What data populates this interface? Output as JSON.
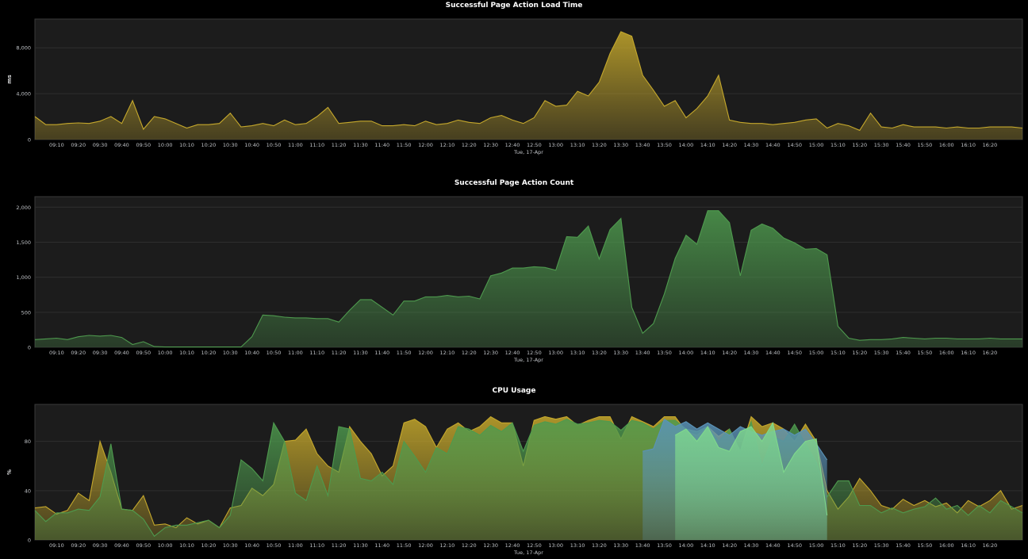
{
  "colors": {
    "background": "#000000",
    "plot_bg": "#1c1c1c",
    "grid": "#2e2e2e",
    "frame": "#3a3a3a"
  },
  "chart_data": [
    {
      "type": "area",
      "title": "Successful Page Action Load Time",
      "ylabel": "ms",
      "xlabel": "Tue, 17-Apr",
      "ylim": [
        0,
        10500
      ],
      "yticks": [
        0,
        4000,
        8000
      ],
      "ytick_labels": [
        "0",
        "4,000",
        "8,000"
      ],
      "x_start": "09:00",
      "x_step_minutes": 5,
      "x_ticks": [
        "09:10",
        "09:20",
        "09:30",
        "09:40",
        "09:50",
        "10:00",
        "10:10",
        "10:20",
        "10:30",
        "10:40",
        "10:50",
        "11:00",
        "11:10",
        "11:20",
        "11:30",
        "11:40",
        "11:50",
        "12:00",
        "12:10",
        "12:20",
        "12:30",
        "12:40",
        "12:50",
        "13:00",
        "13:10",
        "13:20",
        "13:30",
        "13:40",
        "13:50",
        "14:00",
        "14:10",
        "14:20",
        "14:30",
        "14:40",
        "14:50",
        "15:00",
        "15:10",
        "15:20",
        "15:30",
        "15:40",
        "15:50",
        "16:00",
        "16:10",
        "16:20"
      ],
      "series": [
        {
          "color": "#c5a82c",
          "values": [
            2000,
            1300,
            1300,
            1400,
            1450,
            1400,
            1600,
            2000,
            1400,
            3400,
            900,
            2000,
            1800,
            1400,
            1000,
            1300,
            1300,
            1400,
            2300,
            1100,
            1200,
            1400,
            1200,
            1700,
            1300,
            1400,
            2000,
            2800,
            1400,
            1500,
            1600,
            1600,
            1200,
            1200,
            1300,
            1200,
            1600,
            1300,
            1400,
            1700,
            1500,
            1400,
            1900,
            2100,
            1700,
            1400,
            1900,
            3400,
            2900,
            3000,
            4200,
            3800,
            5000,
            7500,
            9400,
            9000,
            5600,
            4300,
            2900,
            3400,
            1900,
            2700,
            3800,
            5600,
            1700,
            1500,
            1400,
            1400,
            1300,
            1400,
            1500,
            1700,
            1800,
            1000,
            1400,
            1200,
            800,
            2300,
            1100,
            1000,
            1300,
            1100,
            1100,
            1100,
            1000,
            1100,
            1000,
            1000,
            1100,
            1100,
            1100,
            1000
          ]
        }
      ]
    },
    {
      "type": "area",
      "title": "Successful Page Action Count",
      "ylabel": "",
      "xlabel": "Tue, 17-Apr",
      "ylim": [
        0,
        2150
      ],
      "yticks": [
        0,
        500,
        1000,
        1500,
        2000
      ],
      "ytick_labels": [
        "0",
        "500",
        "1,000",
        "1,500",
        "2,000"
      ],
      "x_start": "09:00",
      "x_step_minutes": 5,
      "x_ticks": [
        "09:10",
        "09:20",
        "09:30",
        "09:40",
        "09:50",
        "10:00",
        "10:10",
        "10:20",
        "10:30",
        "10:40",
        "10:50",
        "11:00",
        "11:10",
        "11:20",
        "11:30",
        "11:40",
        "11:50",
        "12:00",
        "12:10",
        "12:20",
        "12:30",
        "12:40",
        "12:50",
        "13:00",
        "13:10",
        "13:20",
        "13:30",
        "13:40",
        "13:50",
        "14:00",
        "14:10",
        "14:20",
        "14:30",
        "14:40",
        "14:50",
        "15:00",
        "15:10",
        "15:20",
        "15:30",
        "15:40",
        "15:50",
        "16:00",
        "16:10",
        "16:20"
      ],
      "series": [
        {
          "color": "#4e9a4e",
          "values": [
            110,
            120,
            130,
            110,
            150,
            170,
            160,
            170,
            140,
            40,
            80,
            10,
            5,
            5,
            5,
            5,
            5,
            5,
            5,
            5,
            150,
            460,
            450,
            430,
            420,
            420,
            410,
            410,
            360,
            530,
            680,
            680,
            570,
            460,
            660,
            660,
            720,
            720,
            740,
            720,
            730,
            690,
            1020,
            1060,
            1130,
            1130,
            1150,
            1140,
            1100,
            1580,
            1570,
            1730,
            1260,
            1680,
            1840,
            570,
            200,
            340,
            760,
            1270,
            1600,
            1470,
            1950,
            1950,
            1780,
            1020,
            1670,
            1760,
            1700,
            1560,
            1490,
            1400,
            1410,
            1320,
            300,
            130,
            100,
            110,
            110,
            120,
            140,
            130,
            120,
            130,
            130,
            120,
            120,
            120,
            130,
            120,
            120,
            120
          ]
        }
      ]
    },
    {
      "type": "area",
      "title": "CPU Usage",
      "ylabel": "%",
      "xlabel": "Tue, 17-Apr",
      "ylim": [
        0,
        110
      ],
      "yticks": [
        0,
        40,
        80
      ],
      "ytick_labels": [
        "0",
        "40",
        "80"
      ],
      "x_start": "09:00",
      "x_step_minutes": 5,
      "x_ticks": [
        "09:10",
        "09:20",
        "09:30",
        "09:40",
        "09:50",
        "10:00",
        "10:10",
        "10:20",
        "10:30",
        "10:40",
        "10:50",
        "11:00",
        "11:10",
        "11:20",
        "11:30",
        "11:40",
        "11:50",
        "12:00",
        "12:10",
        "12:20",
        "12:30",
        "12:40",
        "12:50",
        "13:00",
        "13:10",
        "13:20",
        "13:30",
        "13:40",
        "13:50",
        "14:00",
        "14:10",
        "14:20",
        "14:30",
        "14:40",
        "14:50",
        "15:00",
        "15:10",
        "15:20",
        "15:30",
        "15:40",
        "15:50",
        "16:00",
        "16:10",
        "16:20"
      ],
      "series": [
        {
          "color": "#c5a82c",
          "values": [
            26,
            27,
            21,
            24,
            38,
            32,
            80,
            55,
            25,
            24,
            36,
            12,
            13,
            10,
            18,
            13,
            16,
            10,
            26,
            28,
            42,
            36,
            45,
            80,
            81,
            90,
            70,
            60,
            55,
            92,
            80,
            70,
            52,
            60,
            95,
            98,
            92,
            75,
            90,
            95,
            88,
            92,
            100,
            95,
            95,
            60,
            97,
            100,
            98,
            100,
            93,
            97,
            100,
            100,
            82,
            100,
            96,
            92,
            100,
            100,
            88,
            85,
            92,
            84,
            90,
            72,
            100,
            92,
            95,
            90,
            80,
            94,
            80,
            40,
            25,
            35,
            50,
            40,
            28,
            25,
            33,
            28,
            32,
            27,
            30,
            22,
            32,
            27,
            32,
            40,
            25,
            28
          ]
        },
        {
          "color": "#4e9a4e",
          "values": [
            24,
            15,
            22,
            22,
            25,
            24,
            35,
            78,
            25,
            24,
            17,
            3,
            10,
            12,
            12,
            14,
            16,
            10,
            20,
            65,
            58,
            48,
            95,
            80,
            38,
            32,
            60,
            36,
            92,
            90,
            50,
            48,
            55,
            45,
            80,
            68,
            55,
            75,
            70,
            92,
            90,
            85,
            93,
            88,
            95,
            72,
            93,
            96,
            94,
            98,
            94,
            95,
            97,
            96,
            89,
            97,
            95,
            90,
            97,
            97,
            90,
            88,
            92,
            80,
            90,
            72,
            96,
            60,
            84,
            80,
            94,
            78,
            63,
            35,
            48,
            48,
            28,
            28,
            22,
            26,
            22,
            25,
            27,
            34,
            25,
            28,
            20,
            28,
            22,
            32,
            27,
            22
          ]
        },
        {
          "color": "#5a93b8",
          "values": [
            0,
            0,
            0,
            0,
            0,
            0,
            0,
            0,
            0,
            0,
            0,
            0,
            0,
            0,
            0,
            0,
            0,
            0,
            0,
            0,
            0,
            0,
            0,
            0,
            0,
            0,
            0,
            0,
            0,
            0,
            0,
            0,
            0,
            0,
            0,
            0,
            0,
            0,
            0,
            0,
            0,
            0,
            0,
            0,
            0,
            0,
            0,
            0,
            0,
            0,
            0,
            0,
            0,
            0,
            0,
            0,
            72,
            74,
            98,
            92,
            96,
            90,
            95,
            90,
            85,
            92,
            88,
            85,
            88,
            90,
            85,
            90,
            78,
            65,
            0,
            0,
            0,
            0,
            0,
            0,
            0,
            0,
            0,
            0,
            0,
            0,
            0,
            0,
            0,
            0,
            0,
            0
          ]
        },
        {
          "color": "#7fd88c",
          "values": [
            0,
            0,
            0,
            0,
            0,
            0,
            0,
            0,
            0,
            0,
            0,
            0,
            0,
            0,
            0,
            0,
            0,
            0,
            0,
            0,
            0,
            0,
            0,
            0,
            0,
            0,
            0,
            0,
            0,
            0,
            0,
            0,
            0,
            0,
            0,
            0,
            0,
            0,
            0,
            0,
            0,
            0,
            0,
            0,
            0,
            0,
            0,
            0,
            0,
            0,
            0,
            0,
            0,
            0,
            0,
            0,
            0,
            0,
            0,
            85,
            90,
            80,
            92,
            75,
            72,
            88,
            92,
            80,
            95,
            55,
            70,
            80,
            82,
            20,
            0,
            0,
            0,
            0,
            0,
            0,
            0,
            0,
            0,
            0,
            0,
            0,
            0,
            0,
            0,
            0,
            0,
            0
          ]
        }
      ]
    }
  ]
}
